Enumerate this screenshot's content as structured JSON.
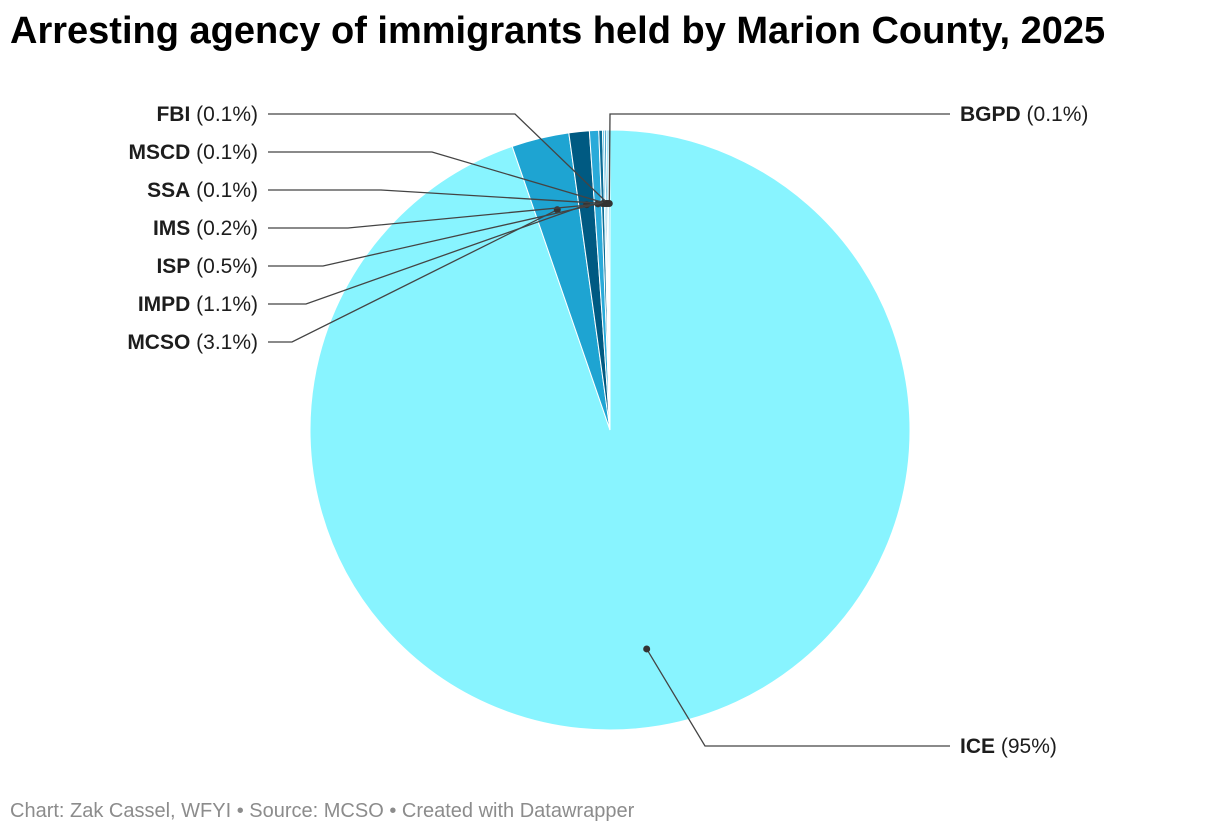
{
  "title": "Arresting agency of immigrants held by Marion County, 2025",
  "footer": {
    "chart_credit": "Chart: Zak Cassel, WFYI",
    "separator": " • ",
    "source": "Source: MCSO",
    "created_with": "Created with Datawrapper"
  },
  "chart_data": {
    "type": "pie",
    "title": "Arresting agency of immigrants held by Marion County, 2025",
    "slices": [
      {
        "label": "ICE",
        "value": 95,
        "display": "(95%)",
        "color": "#88f4ff"
      },
      {
        "label": "MCSO",
        "value": 3.1,
        "display": "(3.1%)",
        "color": "#1ea4d2"
      },
      {
        "label": "IMPD",
        "value": 1.1,
        "display": "(1.1%)",
        "color": "#005a82"
      },
      {
        "label": "ISP",
        "value": 0.5,
        "display": "(0.5%)",
        "color": "#2aaad9"
      },
      {
        "label": "IMS",
        "value": 0.2,
        "display": "(0.2%)",
        "color": "#0b6d96"
      },
      {
        "label": "SSA",
        "value": 0.1,
        "display": "(0.1%)",
        "color": "#4fc3e8"
      },
      {
        "label": "MSCD",
        "value": 0.1,
        "display": "(0.1%)",
        "color": "#1484b4"
      },
      {
        "label": "FBI",
        "value": 0.1,
        "display": "(0.1%)",
        "color": "#6fdcf5"
      },
      {
        "label": "BGPD",
        "value": 0.1,
        "display": "(0.1%)",
        "color": "#3bb8e2"
      }
    ]
  }
}
